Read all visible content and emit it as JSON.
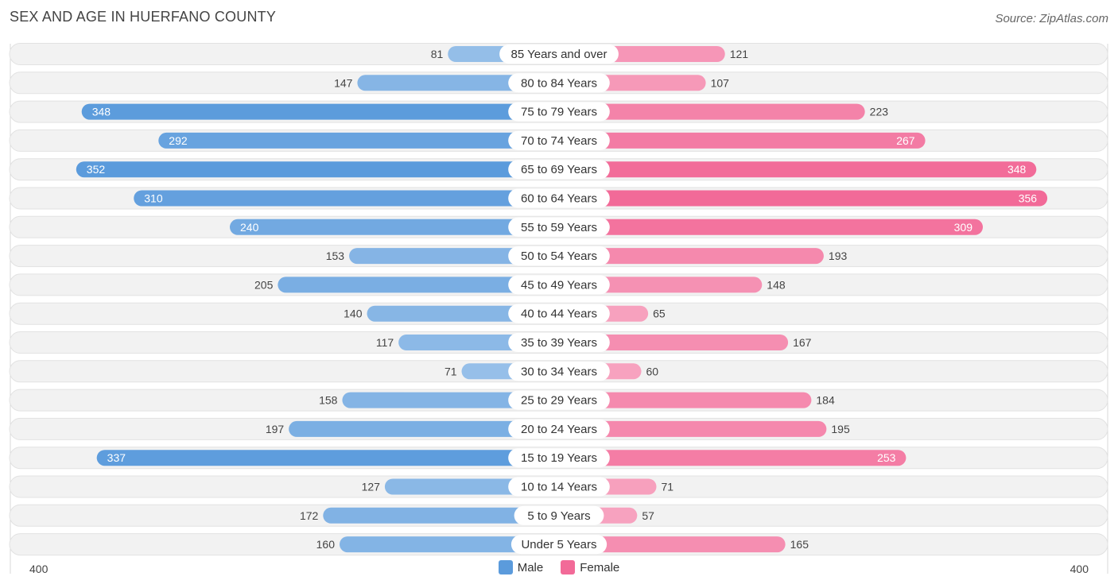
{
  "title": "SEX AND AGE IN HUERFANO COUNTY",
  "source": "Source: ZipAtlas.com",
  "colors": {
    "male": "#5b9bdc",
    "female": "#f26a98",
    "row_bg": "#f2f2f2"
  },
  "legend": {
    "male_label": "Male",
    "female_label": "Female"
  },
  "axis": {
    "left_label": "400",
    "right_label": "400"
  },
  "chart_data": {
    "type": "bar",
    "orientation": "horizontal-diverging",
    "categories": [
      "85 Years and over",
      "80 to 84 Years",
      "75 to 79 Years",
      "70 to 74 Years",
      "65 to 69 Years",
      "60 to 64 Years",
      "55 to 59 Years",
      "50 to 54 Years",
      "45 to 49 Years",
      "40 to 44 Years",
      "35 to 39 Years",
      "30 to 34 Years",
      "25 to 29 Years",
      "20 to 24 Years",
      "15 to 19 Years",
      "10 to 14 Years",
      "5 to 9 Years",
      "Under 5 Years"
    ],
    "series": [
      {
        "name": "Male",
        "values": [
          81,
          147,
          348,
          292,
          352,
          310,
          240,
          153,
          205,
          140,
          117,
          71,
          158,
          197,
          337,
          127,
          172,
          160
        ]
      },
      {
        "name": "Female",
        "values": [
          121,
          107,
          223,
          267,
          348,
          356,
          309,
          193,
          148,
          65,
          167,
          60,
          184,
          195,
          253,
          71,
          57,
          165
        ]
      }
    ],
    "xlim": [
      0,
      400
    ],
    "legend_position": "bottom-center"
  }
}
